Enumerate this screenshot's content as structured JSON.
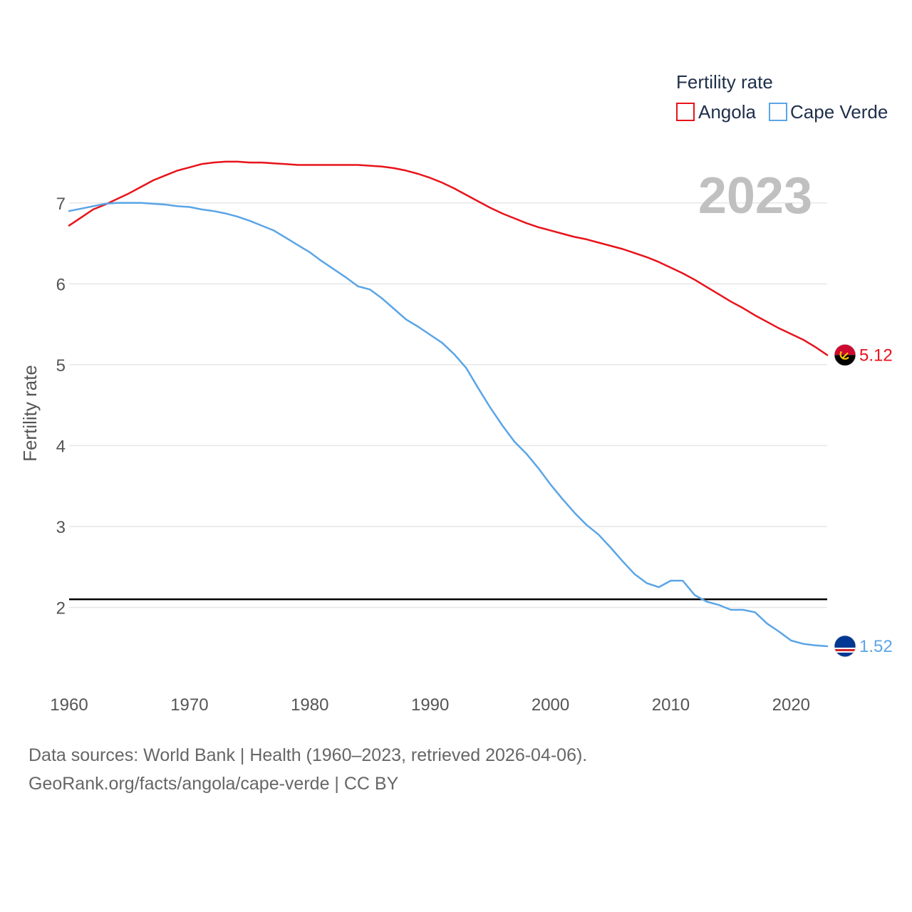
{
  "chart_data": {
    "type": "line",
    "year_label": "2023",
    "ylabel": "Fertility rate",
    "xlabel": "",
    "xlim": [
      1960,
      2023
    ],
    "ylim": [
      1.0,
      7.8
    ],
    "x_ticks": [
      1960,
      1970,
      1980,
      1990,
      2000,
      2010,
      2020
    ],
    "y_ticks": [
      2,
      3,
      4,
      5,
      6,
      7
    ],
    "reference_line": 2.1,
    "legend": {
      "title": "Fertility rate",
      "position": "top-right"
    },
    "x": [
      1960,
      1961,
      1962,
      1963,
      1964,
      1965,
      1966,
      1967,
      1968,
      1969,
      1970,
      1971,
      1972,
      1973,
      1974,
      1975,
      1976,
      1977,
      1978,
      1979,
      1980,
      1981,
      1982,
      1983,
      1984,
      1985,
      1986,
      1987,
      1988,
      1989,
      1990,
      1991,
      1992,
      1993,
      1994,
      1995,
      1996,
      1997,
      1998,
      1999,
      2000,
      2001,
      2002,
      2003,
      2004,
      2005,
      2006,
      2007,
      2008,
      2009,
      2010,
      2011,
      2012,
      2013,
      2014,
      2015,
      2016,
      2017,
      2018,
      2019,
      2020,
      2021,
      2022,
      2023
    ],
    "series": [
      {
        "name": "Angola",
        "color": "#e8131b",
        "end_label": "5.12",
        "flag": "angola-flag-icon",
        "values": [
          6.72,
          6.82,
          6.92,
          6.98,
          7.05,
          7.12,
          7.2,
          7.28,
          7.34,
          7.4,
          7.44,
          7.48,
          7.5,
          7.51,
          7.51,
          7.5,
          7.5,
          7.49,
          7.48,
          7.47,
          7.47,
          7.47,
          7.47,
          7.47,
          7.47,
          7.46,
          7.45,
          7.43,
          7.4,
          7.36,
          7.31,
          7.25,
          7.18,
          7.1,
          7.02,
          6.94,
          6.87,
          6.81,
          6.75,
          6.7,
          6.66,
          6.62,
          6.58,
          6.55,
          6.51,
          6.47,
          6.43,
          6.38,
          6.33,
          6.27,
          6.2,
          6.13,
          6.05,
          5.96,
          5.87,
          5.78,
          5.7,
          5.61,
          5.53,
          5.45,
          5.38,
          5.31,
          5.22,
          5.12
        ]
      },
      {
        "name": "Cape Verde",
        "color": "#5aa5e6",
        "end_label": "1.52",
        "flag": "cape-verde-flag-icon",
        "values": [
          6.9,
          6.93,
          6.96,
          6.99,
          7.0,
          7.0,
          7.0,
          6.99,
          6.98,
          6.96,
          6.95,
          6.92,
          6.9,
          6.87,
          6.83,
          6.78,
          6.72,
          6.66,
          6.57,
          6.48,
          6.39,
          6.28,
          6.18,
          6.08,
          5.97,
          5.93,
          5.82,
          5.69,
          5.56,
          5.47,
          5.37,
          5.27,
          5.13,
          4.96,
          4.71,
          4.47,
          4.25,
          4.05,
          3.9,
          3.72,
          3.52,
          3.34,
          3.17,
          3.02,
          2.9,
          2.74,
          2.57,
          2.41,
          2.3,
          2.25,
          2.33,
          2.33,
          2.15,
          2.07,
          2.03,
          1.97,
          1.97,
          1.94,
          1.8,
          1.7,
          1.59,
          1.55,
          1.53,
          1.52
        ]
      }
    ]
  },
  "footer": {
    "line1": "Data sources: World Bank | Health (1960–2023, retrieved 2026-04-06).",
    "line2": "GeoRank.org/facts/angola/cape-verde | CC BY"
  }
}
